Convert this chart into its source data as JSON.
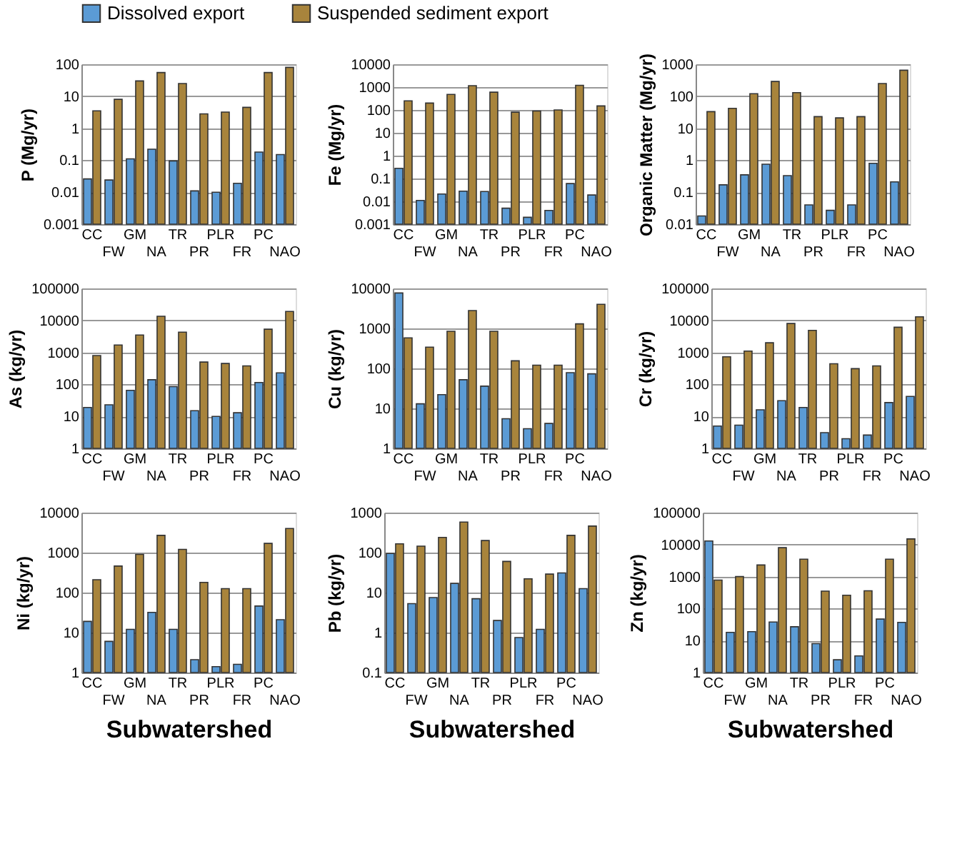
{
  "chart_data": [
    {
      "type": "bar",
      "ylabel": "P (Mg/yr)",
      "categories": [
        "CC",
        "FW",
        "GM",
        "NA",
        "TR",
        "PR",
        "PLR",
        "FR",
        "PC",
        "NAO"
      ],
      "log": true,
      "ylim": [
        0.001,
        100
      ],
      "yticks": [
        0.001,
        0.01,
        0.1,
        1,
        10,
        100
      ],
      "grid": "y",
      "legend": "top",
      "series": [
        {
          "name": "Dissolved export",
          "color": "#5b9bd5",
          "values": [
            0.026,
            0.024,
            0.11,
            0.22,
            0.095,
            0.011,
            0.01,
            0.019,
            0.18,
            0.15
          ]
        },
        {
          "name": "Suspended sediment export",
          "color": "#a8843c",
          "values": [
            3.5,
            8,
            30,
            55,
            25,
            2.8,
            3.2,
            4.5,
            55,
            80
          ]
        }
      ]
    },
    {
      "type": "bar",
      "ylabel": "Fe (Mg/yr)",
      "categories": [
        "CC",
        "FW",
        "GM",
        "NA",
        "TR",
        "PR",
        "PLR",
        "FR",
        "PC",
        "NAO"
      ],
      "log": true,
      "ylim": [
        0.001,
        10000
      ],
      "yticks": [
        0.001,
        0.01,
        0.1,
        1,
        10,
        100,
        1000,
        10000
      ],
      "grid": "y",
      "series": [
        {
          "color": "#5b9bd5",
          "values": [
            0.28,
            0.011,
            0.021,
            0.028,
            0.027,
            0.005,
            0.002,
            0.004,
            0.06,
            0.019
          ]
        },
        {
          "color": "#a8843c",
          "values": [
            250,
            200,
            480,
            1150,
            600,
            80,
            90,
            100,
            1200,
            150
          ]
        }
      ]
    },
    {
      "type": "bar",
      "ylabel": "Organic Matter (Mg/yr)",
      "categories": [
        "CC",
        "FW",
        "GM",
        "NA",
        "TR",
        "PR",
        "PLR",
        "FR",
        "PC",
        "NAO"
      ],
      "log": true,
      "ylim": [
        0.01,
        1000
      ],
      "yticks": [
        0.01,
        0.1,
        1,
        10,
        100,
        1000
      ],
      "grid": "y",
      "series": [
        {
          "color": "#5b9bd5",
          "values": [
            0.018,
            0.17,
            0.35,
            0.75,
            0.33,
            0.04,
            0.027,
            0.04,
            0.8,
            0.21
          ]
        },
        {
          "color": "#a8843c",
          "values": [
            33,
            42,
            120,
            290,
            130,
            23,
            21,
            23,
            250,
            650
          ]
        }
      ]
    },
    {
      "type": "bar",
      "ylabel": "As (kg/yr)",
      "categories": [
        "CC",
        "FW",
        "GM",
        "NA",
        "TR",
        "PR",
        "PLR",
        "FR",
        "PC",
        "NAO"
      ],
      "log": true,
      "ylim": [
        1,
        100000
      ],
      "yticks": [
        1,
        10,
        100,
        1000,
        10000,
        100000
      ],
      "grid": "y",
      "series": [
        {
          "color": "#5b9bd5",
          "values": [
            19,
            23,
            65,
            140,
            85,
            15,
            10,
            13,
            115,
            230
          ]
        },
        {
          "color": "#a8843c",
          "values": [
            800,
            1700,
            3500,
            13500,
            4300,
            500,
            450,
            380,
            5300,
            19000
          ]
        }
      ]
    },
    {
      "type": "bar",
      "ylabel": "Cu (kg/yr)",
      "categories": [
        "CC",
        "FW",
        "GM",
        "NA",
        "TR",
        "PR",
        "PLR",
        "FR",
        "PC",
        "NAO"
      ],
      "log": true,
      "ylim": [
        1,
        10000
      ],
      "yticks": [
        1,
        10,
        100,
        1000,
        10000
      ],
      "grid": "y",
      "series": [
        {
          "color": "#5b9bd5",
          "values": [
            7700,
            13,
            22,
            52,
            36,
            5.5,
            3.1,
            4.2,
            78,
            73
          ]
        },
        {
          "color": "#a8843c",
          "values": [
            580,
            340,
            850,
            2800,
            850,
            155,
            120,
            120,
            1300,
            4000
          ]
        }
      ]
    },
    {
      "type": "bar",
      "ylabel": "Cr (kg/yr)",
      "categories": [
        "CC",
        "FW",
        "GM",
        "NA",
        "TR",
        "PR",
        "PLR",
        "FR",
        "PC",
        "NAO"
      ],
      "log": true,
      "ylim": [
        1,
        100000
      ],
      "yticks": [
        1,
        10,
        100,
        1000,
        10000,
        100000
      ],
      "grid": "y",
      "series": [
        {
          "color": "#5b9bd5",
          "values": [
            5,
            5.3,
            16,
            31,
            19,
            3.1,
            2,
            2.6,
            27,
            42
          ]
        },
        {
          "color": "#a8843c",
          "values": [
            730,
            1100,
            2000,
            8000,
            4900,
            440,
            310,
            380,
            6100,
            13000
          ]
        }
      ]
    },
    {
      "type": "bar",
      "ylabel": "Ni (kg/yr)",
      "xlabel": "Subwatershed",
      "categories": [
        "CC",
        "FW",
        "GM",
        "NA",
        "TR",
        "PR",
        "PLR",
        "FR",
        "PC",
        "NAO"
      ],
      "log": true,
      "ylim": [
        1,
        10000
      ],
      "yticks": [
        1,
        10,
        100,
        1000,
        10000
      ],
      "grid": "y",
      "series": [
        {
          "color": "#5b9bd5",
          "values": [
            19,
            6,
            12,
            32,
            12,
            2.1,
            1.4,
            1.6,
            46,
            21
          ]
        },
        {
          "color": "#a8843c",
          "values": [
            210,
            460,
            900,
            2700,
            1200,
            180,
            125,
            125,
            1700,
            4000
          ]
        }
      ]
    },
    {
      "type": "bar",
      "ylabel": "Pb (kg/yr)",
      "xlabel": "Subwatershed",
      "categories": [
        "CC",
        "FW",
        "GM",
        "NA",
        "TR",
        "PR",
        "PLR",
        "FR",
        "PC",
        "NAO"
      ],
      "log": true,
      "ylim": [
        0.1,
        1000
      ],
      "yticks": [
        0.1,
        1,
        10,
        100,
        1000
      ],
      "grid": "y",
      "series": [
        {
          "color": "#5b9bd5",
          "values": [
            95,
            5.3,
            7.5,
            17,
            7,
            2,
            0.75,
            1.2,
            31,
            12.5
          ]
        },
        {
          "color": "#a8843c",
          "values": [
            165,
            145,
            240,
            580,
            200,
            60,
            22,
            29,
            270,
            460
          ]
        }
      ]
    },
    {
      "type": "bar",
      "ylabel": "Zn (kg/yr)",
      "xlabel": "Subwatershed",
      "categories": [
        "CC",
        "FW",
        "GM",
        "NA",
        "TR",
        "PR",
        "PLR",
        "FR",
        "PC",
        "NAO"
      ],
      "log": true,
      "ylim": [
        1,
        100000
      ],
      "yticks": [
        1,
        10,
        100,
        1000,
        10000,
        100000
      ],
      "grid": "y",
      "series": [
        {
          "color": "#5b9bd5",
          "values": [
            13000,
            18,
            19,
            38,
            27,
            8,
            2.5,
            3.3,
            47,
            37
          ]
        },
        {
          "color": "#a8843c",
          "values": [
            780,
            1000,
            2300,
            8000,
            3500,
            350,
            260,
            360,
            3500,
            15000
          ]
        }
      ]
    }
  ]
}
